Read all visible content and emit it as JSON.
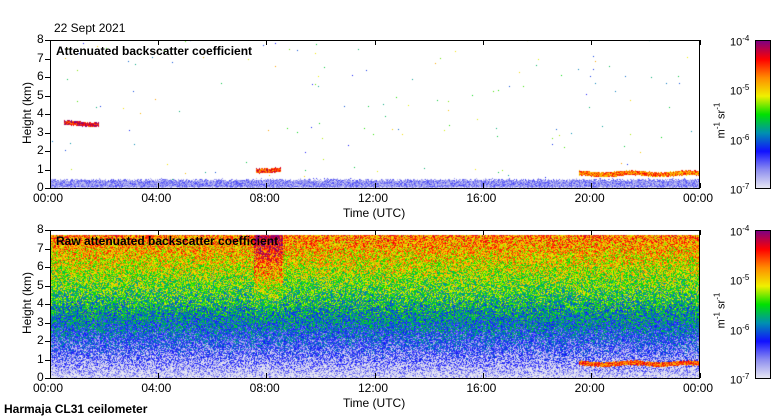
{
  "header": {
    "date": "22 Sept 2021"
  },
  "footer": {
    "instrument": "Harmaja CL31 ceilometer"
  },
  "chart_data": [
    {
      "type": "heatmap",
      "title": "Attenuated backscatter coefficient",
      "xlabel": "Time (UTC)",
      "ylabel": "Height (km)",
      "xticks": [
        "00:00",
        "04:00",
        "08:00",
        "12:00",
        "16:00",
        "20:00",
        "00:00"
      ],
      "yticks": [
        "0",
        "1",
        "2",
        "3",
        "4",
        "5",
        "6",
        "7",
        "8"
      ],
      "xlim_hours": [
        0,
        24
      ],
      "ylim_km": [
        0,
        8
      ],
      "colorbar": {
        "label_base": "m",
        "label_exp1": "-1",
        "label_mid": " sr",
        "label_exp2": "-1",
        "ticks": [
          {
            "base": "10",
            "exp": "-4"
          },
          {
            "base": "10",
            "exp": "-5"
          },
          {
            "base": "10",
            "exp": "-6"
          },
          {
            "base": "10",
            "exp": "-7"
          }
        ],
        "scale": "log",
        "range": [
          1e-07,
          0.0001
        ]
      },
      "features": [
        {
          "type": "boundary layer",
          "time_hours": [
            0,
            24
          ],
          "height_km": [
            0,
            0.4
          ],
          "log_value": -6.8
        },
        {
          "type": "cloud",
          "time_hours": [
            0.5,
            1.8
          ],
          "height_km": 3.5,
          "log_value": -4.3
        },
        {
          "type": "cloud",
          "time_hours": [
            7.6,
            8.5
          ],
          "height_km": 1.0,
          "log_value": -4.5
        },
        {
          "type": "cloud",
          "time_hours": [
            19.5,
            24
          ],
          "height_km": 0.8,
          "log_value": -4.7
        }
      ]
    },
    {
      "type": "heatmap",
      "title": "Raw attenuated backscatter coefficient",
      "xlabel": "Time (UTC)",
      "ylabel": "Height (km)",
      "xticks": [
        "00:00",
        "04:00",
        "08:00",
        "12:00",
        "16:00",
        "20:00",
        "00:00"
      ],
      "yticks": [
        "0",
        "1",
        "2",
        "3",
        "4",
        "5",
        "6",
        "7",
        "8"
      ],
      "xlim_hours": [
        0,
        24
      ],
      "ylim_km": [
        0,
        8
      ],
      "colorbar": {
        "label_base": "m",
        "label_exp1": "-1",
        "label_mid": " sr",
        "label_exp2": "-1",
        "ticks": [
          {
            "base": "10",
            "exp": "-4"
          },
          {
            "base": "10",
            "exp": "-5"
          },
          {
            "base": "10",
            "exp": "-6"
          },
          {
            "base": "10",
            "exp": "-7"
          }
        ],
        "scale": "log",
        "range": [
          1e-07,
          0.0001
        ]
      },
      "features": [
        {
          "type": "noise gradient",
          "height_km": [
            0,
            7.7
          ],
          "log_value_range": [
            -7,
            -4.6
          ]
        },
        {
          "type": "enhanced column",
          "time_hours": [
            7.5,
            8.6
          ],
          "log_value": -4.3
        },
        {
          "type": "cloud",
          "time_hours": [
            19.5,
            24
          ],
          "height_km": 0.8,
          "log_value": -4.6
        }
      ]
    }
  ],
  "colors": {
    "cmap": [
      "#e6e6f2",
      "#8c8cf0",
      "#1010ff",
      "#0090b0",
      "#00e000",
      "#f0f000",
      "#ff8c00",
      "#ff0000",
      "#800080"
    ]
  }
}
